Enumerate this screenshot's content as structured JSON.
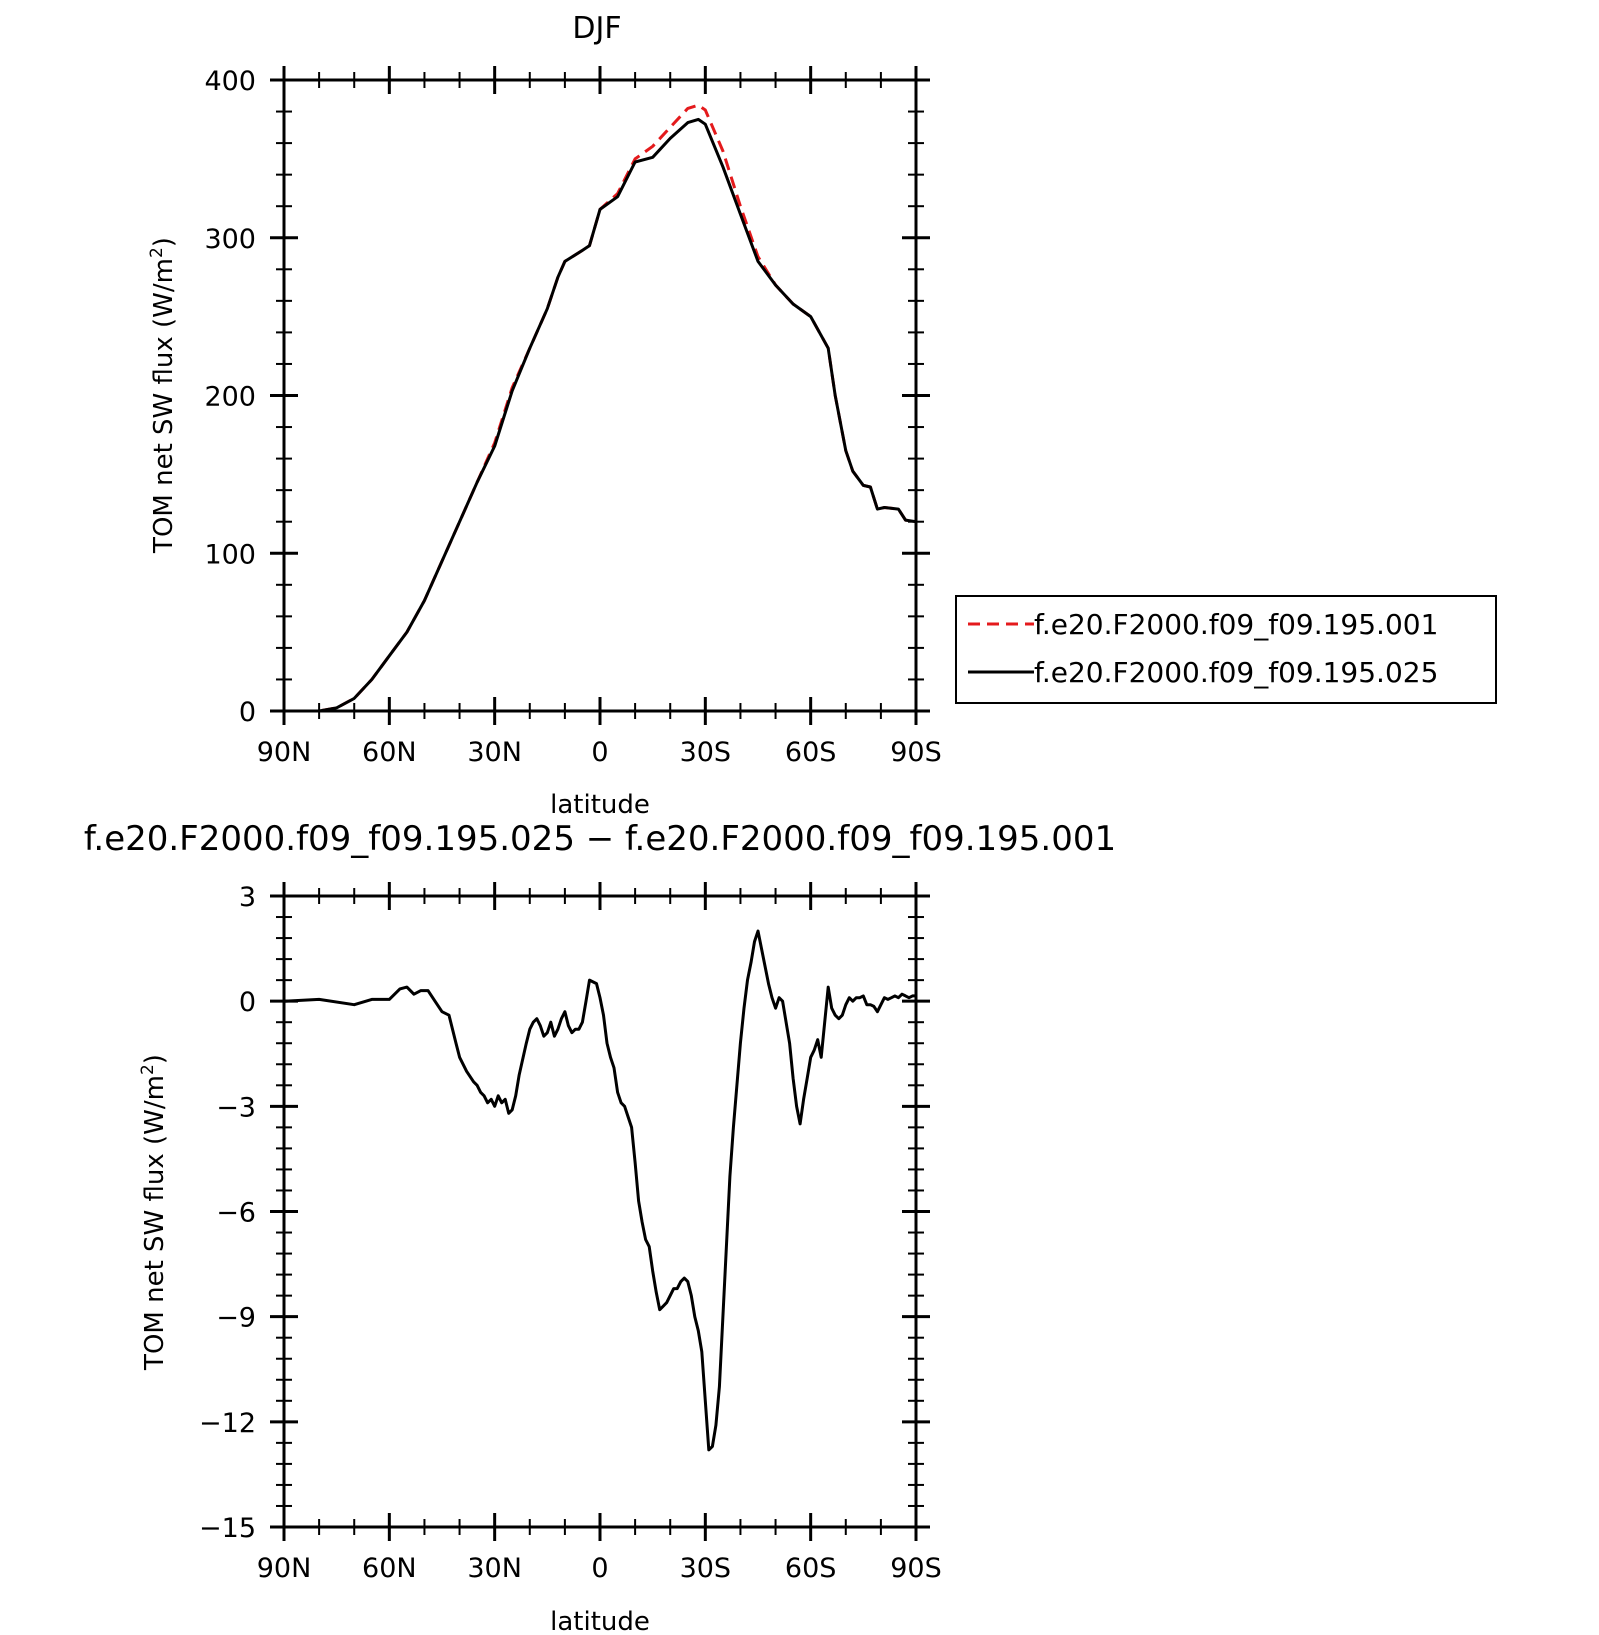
{
  "chart_data": [
    {
      "type": "line",
      "title": "DJF",
      "xlabel": "latitude",
      "ylabel_main": "TOM net SW flux (W/m",
      "ylabel_sup": "2",
      "ylabel_end": ")",
      "xlim": [
        90,
        -90
      ],
      "ylim": [
        0,
        400
      ],
      "x_ticks": [
        90,
        60,
        30,
        0,
        -30,
        -60,
        -90
      ],
      "x_tick_labels": [
        "90N",
        "60N",
        "30N",
        "0",
        "30S",
        "60S",
        "90S"
      ],
      "y_ticks": [
        0,
        100,
        200,
        300,
        400
      ],
      "y_tick_labels": [
        "0",
        "100",
        "200",
        "300",
        "400"
      ],
      "legend_position": "right",
      "series": [
        {
          "name": "f.e20.F2000.f09_f09.195.001",
          "color": "#e41a1c",
          "style": "dashed",
          "x": [
            90,
            80,
            75,
            70,
            65,
            60,
            55,
            50,
            45,
            40,
            35,
            30,
            25,
            20,
            15,
            12,
            10,
            5,
            3,
            0,
            -5,
            -10,
            -15,
            -20,
            -25,
            -28,
            -30,
            -35,
            -40,
            -45,
            -50,
            -55,
            -60,
            -65,
            -67,
            -70,
            -72,
            -75,
            -77,
            -79,
            -81,
            -85,
            -87,
            -90
          ],
          "y": [
            0,
            0,
            2,
            8,
            20,
            35,
            50,
            70,
            95,
            120,
            145,
            170,
            205,
            230,
            255,
            275,
            285,
            292,
            295,
            318,
            328,
            350,
            358,
            370,
            382,
            384,
            381,
            355,
            320,
            288,
            270,
            258,
            250,
            230,
            200,
            165,
            152,
            143,
            142,
            128,
            129,
            128,
            121,
            120
          ]
        },
        {
          "name": "f.e20.F2000.f09_f09.195.025",
          "color": "#000000",
          "style": "solid",
          "x": [
            90,
            80,
            75,
            70,
            65,
            60,
            55,
            50,
            45,
            40,
            35,
            30,
            25,
            20,
            15,
            12,
            10,
            5,
            3,
            0,
            -5,
            -10,
            -15,
            -20,
            -25,
            -28,
            -30,
            -35,
            -40,
            -45,
            -50,
            -55,
            -60,
            -65,
            -67,
            -70,
            -72,
            -75,
            -77,
            -79,
            -81,
            -85,
            -87,
            -90
          ],
          "y": [
            0,
            0,
            2,
            8,
            20,
            35,
            50,
            70,
            95,
            120,
            145,
            168,
            203,
            230,
            255,
            275,
            285,
            292,
            295,
            318,
            326,
            348,
            351,
            363,
            373,
            375,
            372,
            345,
            315,
            285,
            270,
            258,
            250,
            230,
            200,
            165,
            152,
            143,
            142,
            128,
            129,
            128,
            121,
            120
          ]
        }
      ]
    },
    {
      "type": "line",
      "title": "f.e20.F2000.f09_f09.195.025 − f.e20.F2000.f09_f09.195.001",
      "xlabel": "latitude",
      "ylabel_main": "TOM net SW flux (W/m",
      "ylabel_sup": "2",
      "ylabel_end": ")",
      "xlim": [
        90,
        -90
      ],
      "ylim": [
        -15,
        3
      ],
      "x_ticks": [
        90,
        60,
        30,
        0,
        -30,
        -60,
        -90
      ],
      "x_tick_labels": [
        "90N",
        "60N",
        "30N",
        "0",
        "30S",
        "60S",
        "90S"
      ],
      "y_ticks": [
        3,
        0,
        -3,
        -6,
        -9,
        -12,
        -15
      ],
      "y_tick_labels": [
        "3",
        "0",
        "−3",
        "−6",
        "−9",
        "−12",
        "−15"
      ],
      "series": [
        {
          "color": "#000000",
          "style": "solid",
          "x": [
            90,
            80,
            70,
            65,
            60,
            57,
            55,
            53,
            51,
            49,
            47,
            45,
            43,
            41,
            40,
            38,
            36,
            35,
            34,
            33,
            32,
            31,
            30,
            29,
            28,
            27,
            26,
            25,
            24,
            23,
            21,
            20,
            19,
            18,
            17,
            16,
            15,
            14,
            13,
            12,
            11,
            10,
            9,
            8,
            7,
            6,
            5,
            4,
            3,
            1,
            0,
            -1,
            -2,
            -3,
            -4,
            -5,
            -6,
            -7,
            -8,
            -9,
            -10,
            -11,
            -12,
            -13,
            -14,
            -15,
            -16,
            -17,
            -18,
            -19,
            -20,
            -21,
            -22,
            -23,
            -24,
            -25,
            -26,
            -27,
            -28,
            -29,
            -30,
            -31,
            -32,
            -33,
            -34,
            -35,
            -36,
            -37,
            -38,
            -39,
            -40,
            -41,
            -42,
            -43,
            -44,
            -45,
            -46,
            -47,
            -48,
            -49,
            -50,
            -51,
            -52,
            -53,
            -54,
            -55,
            -56,
            -57,
            -58,
            -59,
            -60,
            -61,
            -62,
            -63,
            -64,
            -65,
            -66,
            -67,
            -68,
            -69,
            -70,
            -71,
            -72,
            -73,
            -74,
            -75,
            -76,
            -77,
            -78,
            -79,
            -80,
            -81,
            -82,
            -83,
            -84,
            -85,
            -86,
            -87,
            -88,
            -89,
            -90
          ],
          "y": [
            0,
            0.05,
            -0.1,
            0.05,
            0.05,
            0.35,
            0.4,
            0.2,
            0.3,
            0.3,
            0.0,
            -0.3,
            -0.4,
            -1.2,
            -1.6,
            -2.0,
            -2.3,
            -2.4,
            -2.6,
            -2.7,
            -2.9,
            -2.8,
            -3.0,
            -2.7,
            -2.9,
            -2.8,
            -3.2,
            -3.1,
            -2.7,
            -2.1,
            -1.2,
            -0.8,
            -0.6,
            -0.5,
            -0.7,
            -1.0,
            -0.9,
            -0.6,
            -1.0,
            -0.8,
            -0.5,
            -0.3,
            -0.7,
            -0.9,
            -0.8,
            -0.8,
            -0.6,
            0.0,
            0.6,
            0.5,
            0.1,
            -0.4,
            -1.2,
            -1.6,
            -1.9,
            -2.6,
            -2.9,
            -3.0,
            -3.3,
            -3.6,
            -4.6,
            -5.7,
            -6.3,
            -6.8,
            -7.0,
            -7.7,
            -8.3,
            -8.8,
            -8.7,
            -8.6,
            -8.4,
            -8.2,
            -8.2,
            -8.0,
            -7.9,
            -8.0,
            -8.4,
            -9.0,
            -9.4,
            -10.0,
            -11.4,
            -12.8,
            -12.7,
            -12.1,
            -11.0,
            -9.0,
            -7.0,
            -5.0,
            -3.6,
            -2.4,
            -1.2,
            -0.2,
            0.6,
            1.1,
            1.7,
            2.0,
            1.5,
            1.0,
            0.5,
            0.1,
            -0.2,
            0.1,
            0.0,
            -0.6,
            -1.2,
            -2.2,
            -3.0,
            -3.5,
            -2.8,
            -2.2,
            -1.6,
            -1.4,
            -1.1,
            -1.6,
            -0.6,
            0.4,
            -0.2,
            -0.4,
            -0.5,
            -0.4,
            -0.1,
            0.1,
            0.0,
            0.1,
            0.1,
            0.15,
            -0.1,
            -0.1,
            -0.15,
            -0.3,
            -0.1,
            0.1,
            0.05,
            0.1,
            0.15,
            0.1,
            0.2,
            0.15,
            0.1,
            0.15,
            0.15
          ]
        }
      ]
    }
  ]
}
